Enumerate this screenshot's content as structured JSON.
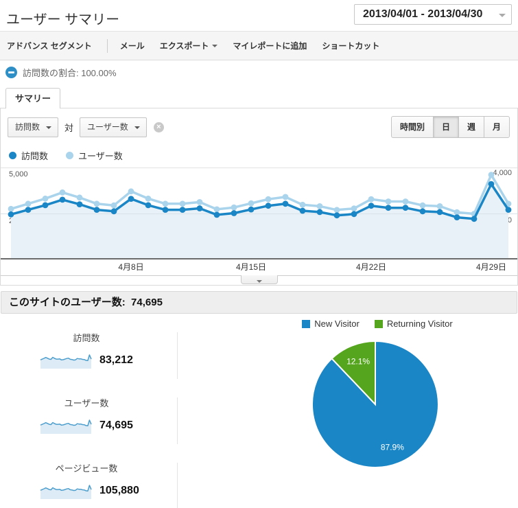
{
  "header": {
    "title": "ユーザー サマリー",
    "date_range": "2013/04/01 - 2013/04/30"
  },
  "toolbar": {
    "advanced_segments": "アドバンス セグメント",
    "mail": "メール",
    "export": "エクスポート",
    "add_to_dashboard": "マイレポートに追加",
    "shortcut": "ショートカット"
  },
  "segment": {
    "label": "訪問数の割合: 100.00%",
    "color": "#2e8fc7"
  },
  "tabs": {
    "summary": "サマリー"
  },
  "metric_picker": {
    "metric_a": "訪問数",
    "vs_label": "対",
    "metric_b": "ユーザー数",
    "close": "×"
  },
  "granularity": {
    "options": [
      "時間別",
      "日",
      "週",
      "月"
    ],
    "active_index": 1
  },
  "chart_legend": [
    {
      "label": "訪問数",
      "color": "#1b86c6"
    },
    {
      "label": "ユーザー数",
      "color": "#aad4ec"
    }
  ],
  "banner": {
    "label": "このサイトのユーザー数:",
    "value": "74,695"
  },
  "metrics": [
    {
      "label": "訪問数",
      "value": "83,212",
      "spark": [
        2450,
        2700,
        2950,
        3250,
        3000,
        2700,
        2620,
        3300,
        2950,
        2700,
        2700,
        2780,
        2430,
        2520,
        2720,
        2920,
        3030,
        2650,
        2580,
        2400,
        2470,
        2920,
        2810,
        2810,
        2620,
        2580,
        2290,
        2210,
        4100,
        2700
      ]
    },
    {
      "label": "ユーザー数",
      "value": "74,695",
      "spark": [
        2199,
        2424,
        2648,
        2917,
        2693,
        2424,
        2352,
        2962,
        2648,
        2424,
        2424,
        2495,
        2181,
        2262,
        2441,
        2621,
        2720,
        2379,
        2316,
        2154,
        2217,
        2621,
        2522,
        2522,
        2352,
        2316,
        2055,
        1984,
        3680,
        2424
      ]
    },
    {
      "label": "ページビュー数",
      "value": "105,880",
      "spark": [
        3116,
        3434,
        3753,
        4134,
        3816,
        3434,
        3333,
        4198,
        3753,
        3434,
        3434,
        3536,
        3091,
        3205,
        3460,
        3714,
        3854,
        3371,
        3282,
        3053,
        3142,
        3714,
        3574,
        3574,
        3333,
        3282,
        2913,
        2811,
        5215,
        3434
      ]
    }
  ],
  "chart_data": [
    {
      "type": "line",
      "x_tick_labels": [
        "4月8日",
        "4月15日",
        "4月22日",
        "4月29日"
      ],
      "x_tick_indices": [
        7,
        14,
        21,
        28
      ],
      "axes": {
        "left": {
          "max": 5000,
          "ticks": [
            {
              "label": "5,000",
              "value": 5000
            },
            {
              "label": "2,500",
              "value": 2500
            }
          ]
        },
        "right": {
          "max": 4000,
          "ticks": [
            {
              "label": "4,000",
              "value": 4000
            },
            {
              "label": "2,000",
              "value": 2000
            }
          ]
        }
      },
      "grid": true,
      "legend_position": "top-left",
      "series": [
        {
          "name": "訪問数",
          "axis": "left",
          "color": "#1b86c6",
          "fill": "#e8f1f8",
          "values": [
            2450,
            2700,
            2950,
            3250,
            3000,
            2700,
            2620,
            3300,
            2950,
            2700,
            2700,
            2780,
            2430,
            2520,
            2720,
            2920,
            3030,
            2650,
            2580,
            2400,
            2470,
            2920,
            2810,
            2810,
            2620,
            2580,
            2290,
            2210,
            4100,
            2700
          ]
        },
        {
          "name": "ユーザー数",
          "axis": "right",
          "color": "#aad4ec",
          "values": [
            2199,
            2424,
            2648,
            2917,
            2693,
            2424,
            2352,
            2962,
            2648,
            2424,
            2424,
            2495,
            2181,
            2262,
            2441,
            2621,
            2720,
            2379,
            2316,
            2154,
            2217,
            2621,
            2522,
            2522,
            2352,
            2316,
            2055,
            1984,
            3680,
            2424
          ]
        }
      ]
    },
    {
      "type": "pie",
      "labels": [
        "New Visitor",
        "Returning Visitor"
      ],
      "values": [
        87.9,
        12.1
      ],
      "value_labels": [
        "87.9%",
        "12.1%"
      ],
      "colors": [
        "#1b86c6",
        "#55a51e"
      ],
      "legend_position": "top"
    }
  ]
}
